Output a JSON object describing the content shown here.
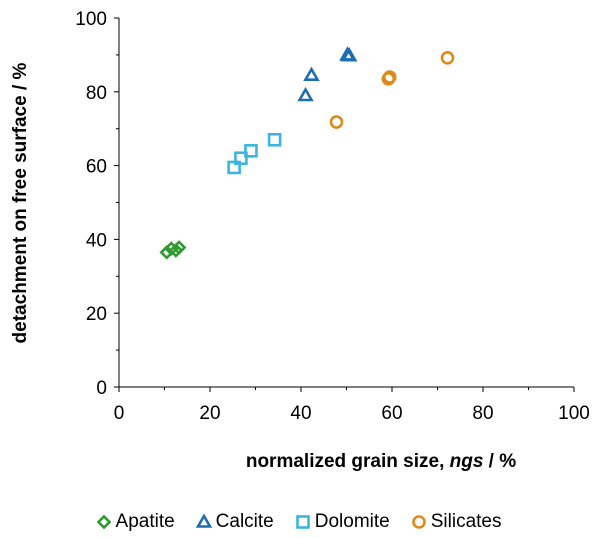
{
  "chart_data": {
    "type": "scatter",
    "xlabel_main": "normalized grain size, ",
    "xlabel_italic": "ngs",
    "xlabel_unit": " / %",
    "ylabel": "detachment on free surface / %",
    "xlim": [
      0,
      100
    ],
    "ylim": [
      0,
      100
    ],
    "xticks": [
      0,
      20,
      40,
      60,
      80,
      100
    ],
    "yticks": [
      0,
      20,
      40,
      60,
      80,
      100
    ],
    "grid": false,
    "legend_position": "bottom",
    "series": [
      {
        "name": "Apatite",
        "marker": "diamond",
        "color": "#2e9a2e",
        "points": [
          [
            10.5,
            36.5
          ],
          [
            11.5,
            37.5
          ],
          [
            12.5,
            37.0
          ],
          [
            13.2,
            37.8
          ]
        ]
      },
      {
        "name": "Calcite",
        "marker": "triangle",
        "color": "#1f6fb0",
        "points": [
          [
            41.0,
            79.0
          ],
          [
            42.3,
            84.5
          ],
          [
            50.2,
            90.0
          ],
          [
            50.6,
            89.8
          ]
        ]
      },
      {
        "name": "Dolomite",
        "marker": "square",
        "color": "#3cb4e0",
        "points": [
          [
            25.3,
            59.5
          ],
          [
            26.8,
            62.0
          ],
          [
            29.0,
            64.0
          ],
          [
            34.2,
            67.0
          ]
        ]
      },
      {
        "name": "Silicates",
        "marker": "circle",
        "color": "#dd8a1a",
        "points": [
          [
            47.8,
            71.8
          ],
          [
            59.2,
            83.5
          ],
          [
            59.5,
            84.0
          ],
          [
            72.2,
            89.2
          ]
        ]
      }
    ]
  }
}
